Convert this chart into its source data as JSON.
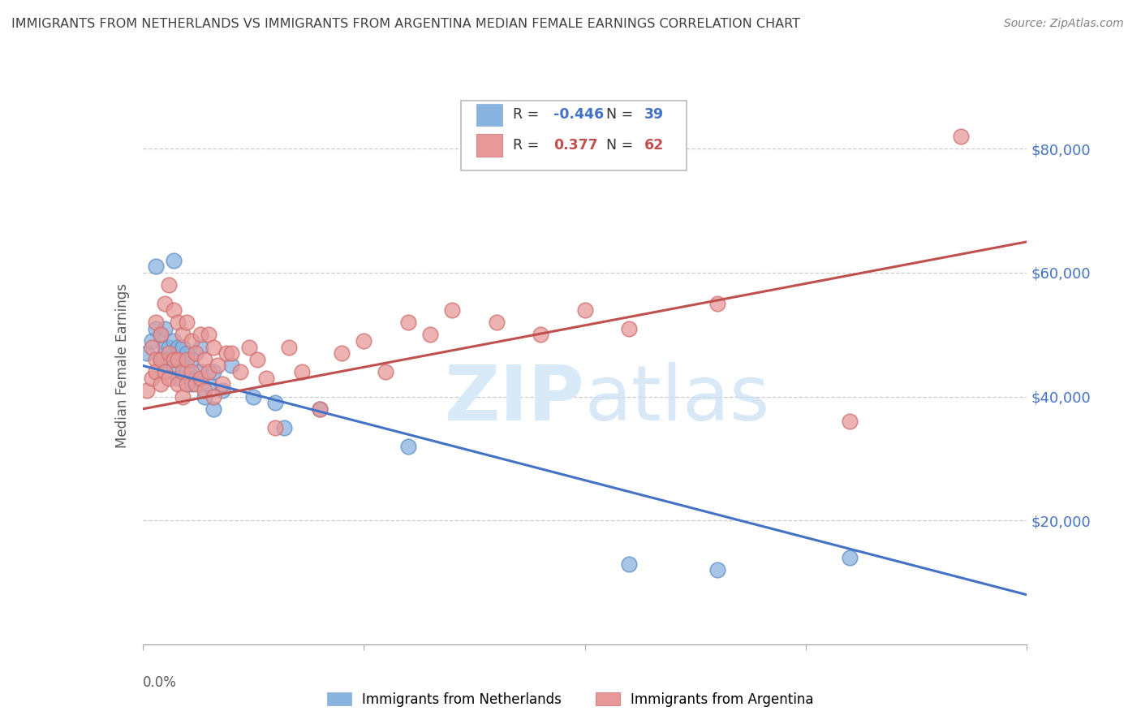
{
  "title": "IMMIGRANTS FROM NETHERLANDS VS IMMIGRANTS FROM ARGENTINA MEDIAN FEMALE EARNINGS CORRELATION CHART",
  "source": "Source: ZipAtlas.com",
  "ylabel": "Median Female Earnings",
  "legend_blue_r": "-0.446",
  "legend_blue_n": "39",
  "legend_pink_r": "0.377",
  "legend_pink_n": "62",
  "legend_label_blue": "Immigrants from Netherlands",
  "legend_label_pink": "Immigrants from Argentina",
  "ytick_labels": [
    "$20,000",
    "$40,000",
    "$60,000",
    "$80,000"
  ],
  "ytick_values": [
    20000,
    40000,
    60000,
    80000
  ],
  "xlim": [
    0.0,
    0.2
  ],
  "ylim": [
    0,
    90000
  ],
  "blue_color": "#8ab4e0",
  "pink_color": "#e89898",
  "blue_line_color": "#4472c4",
  "pink_line_color": "#c0504d",
  "title_color": "#404040",
  "source_color": "#808080",
  "watermark_color": "#d8e8f5",
  "r_blue_color": "#4472c4",
  "r_pink_color": "#c0504d",
  "blue_scatter_x": [
    0.001,
    0.002,
    0.003,
    0.003,
    0.004,
    0.004,
    0.005,
    0.005,
    0.005,
    0.006,
    0.006,
    0.007,
    0.007,
    0.007,
    0.008,
    0.008,
    0.009,
    0.009,
    0.01,
    0.01,
    0.011,
    0.011,
    0.012,
    0.013,
    0.013,
    0.014,
    0.015,
    0.016,
    0.016,
    0.018,
    0.02,
    0.025,
    0.03,
    0.032,
    0.04,
    0.06,
    0.11,
    0.13,
    0.16
  ],
  "blue_scatter_y": [
    47000,
    49000,
    61000,
    51000,
    46000,
    50000,
    48000,
    44000,
    51000,
    48000,
    46000,
    62000,
    49000,
    45000,
    48000,
    43000,
    46000,
    48000,
    44000,
    47000,
    42000,
    46000,
    43000,
    44000,
    48000,
    40000,
    42000,
    44000,
    38000,
    41000,
    45000,
    40000,
    39000,
    35000,
    38000,
    32000,
    13000,
    12000,
    14000
  ],
  "pink_scatter_x": [
    0.001,
    0.002,
    0.002,
    0.003,
    0.003,
    0.003,
    0.004,
    0.004,
    0.004,
    0.005,
    0.005,
    0.006,
    0.006,
    0.006,
    0.007,
    0.007,
    0.008,
    0.008,
    0.008,
    0.009,
    0.009,
    0.009,
    0.01,
    0.01,
    0.01,
    0.011,
    0.011,
    0.012,
    0.012,
    0.013,
    0.013,
    0.014,
    0.014,
    0.015,
    0.015,
    0.016,
    0.016,
    0.017,
    0.018,
    0.019,
    0.02,
    0.022,
    0.024,
    0.026,
    0.028,
    0.03,
    0.033,
    0.036,
    0.04,
    0.045,
    0.05,
    0.055,
    0.06,
    0.065,
    0.07,
    0.08,
    0.09,
    0.1,
    0.11,
    0.13,
    0.16,
    0.185
  ],
  "pink_scatter_y": [
    41000,
    43000,
    48000,
    46000,
    52000,
    44000,
    50000,
    46000,
    42000,
    55000,
    44000,
    58000,
    47000,
    43000,
    54000,
    46000,
    52000,
    46000,
    42000,
    50000,
    44000,
    40000,
    52000,
    46000,
    42000,
    49000,
    44000,
    47000,
    42000,
    50000,
    43000,
    46000,
    41000,
    50000,
    44000,
    48000,
    40000,
    45000,
    42000,
    47000,
    47000,
    44000,
    48000,
    46000,
    43000,
    35000,
    48000,
    44000,
    38000,
    47000,
    49000,
    44000,
    52000,
    50000,
    54000,
    52000,
    50000,
    54000,
    51000,
    55000,
    36000,
    82000
  ]
}
